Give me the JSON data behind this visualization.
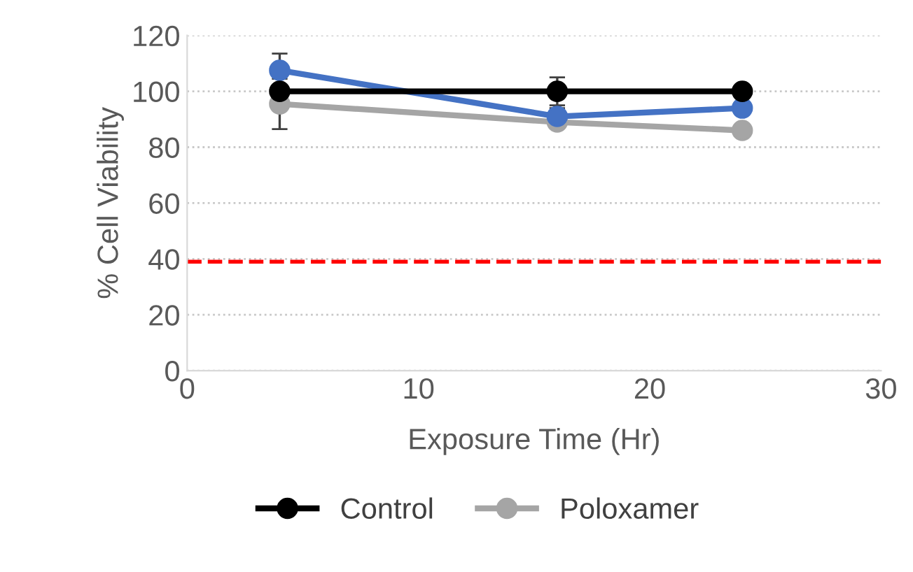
{
  "chart_data": {
    "type": "line",
    "xlabel": "Exposure Time (Hr)",
    "ylabel": "% Cell Viability",
    "x": [
      4,
      16,
      24
    ],
    "series": [
      {
        "name": "Control",
        "color": "#000000",
        "values": [
          100,
          100,
          100
        ],
        "errors": [
          null,
          5,
          null
        ]
      },
      {
        "color": "#4472c4",
        "values": [
          107.5,
          91,
          94
        ],
        "errors": [
          6,
          3,
          null
        ]
      },
      {
        "name": "Poloxamer",
        "color": "#a5a5a5",
        "values": [
          95.5,
          89,
          86
        ],
        "errors": [
          9,
          null,
          null
        ]
      }
    ],
    "xlim": [
      0,
      30
    ],
    "xticks": [
      0,
      10,
      20,
      30
    ],
    "ylim": [
      0,
      120
    ],
    "yticks": [
      0,
      20,
      40,
      60,
      80,
      100,
      120
    ],
    "ref_lines": [
      {
        "axis": "y",
        "value": 39,
        "color": "#ff0000",
        "line_style": "dashed"
      }
    ],
    "grid": "y",
    "legend": "bottom",
    "marker": "circle",
    "line_style": "solid"
  }
}
